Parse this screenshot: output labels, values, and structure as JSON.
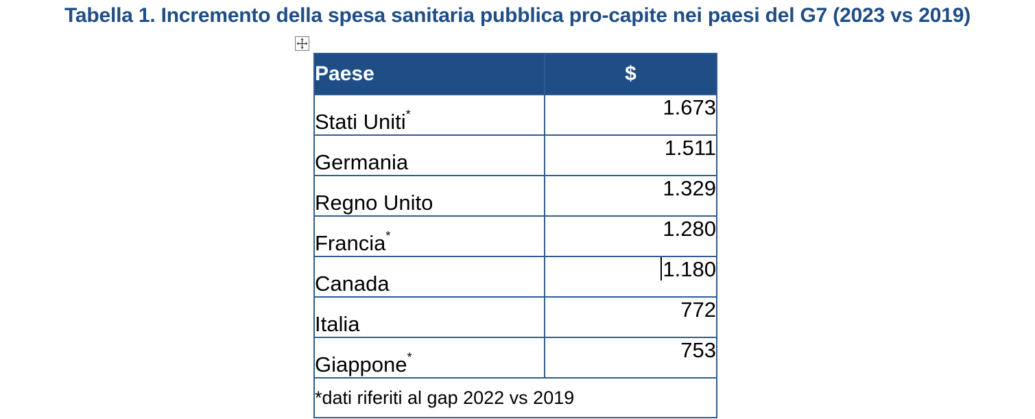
{
  "title": "Tabella 1. Incremento della spesa sanitaria pubblica pro-capite nei paesi del G7 (2023 vs 2019)",
  "colors": {
    "title": "#1f4d86",
    "header_bg": "#1f4d86",
    "border": "#2e5c93"
  },
  "table": {
    "headers": [
      "Paese",
      "$"
    ],
    "rows": [
      {
        "country": "Stati Uniti",
        "marker": "*",
        "value": "1.673"
      },
      {
        "country": "Germania",
        "marker": "",
        "value": "1.511"
      },
      {
        "country": "Regno Unito",
        "marker": "",
        "value": "1.329"
      },
      {
        "country": "Francia",
        "marker": "*",
        "value": "1.280"
      },
      {
        "country": "Canada",
        "marker": "",
        "value": "1.180"
      },
      {
        "country": "Italia",
        "marker": "",
        "value": "772"
      },
      {
        "country": "Giappone",
        "marker": "*",
        "value": "753"
      }
    ],
    "footnote": "*dati riferiti al gap 2022 vs 2019"
  },
  "icons": {
    "table_handle": "move-arrows-icon"
  }
}
